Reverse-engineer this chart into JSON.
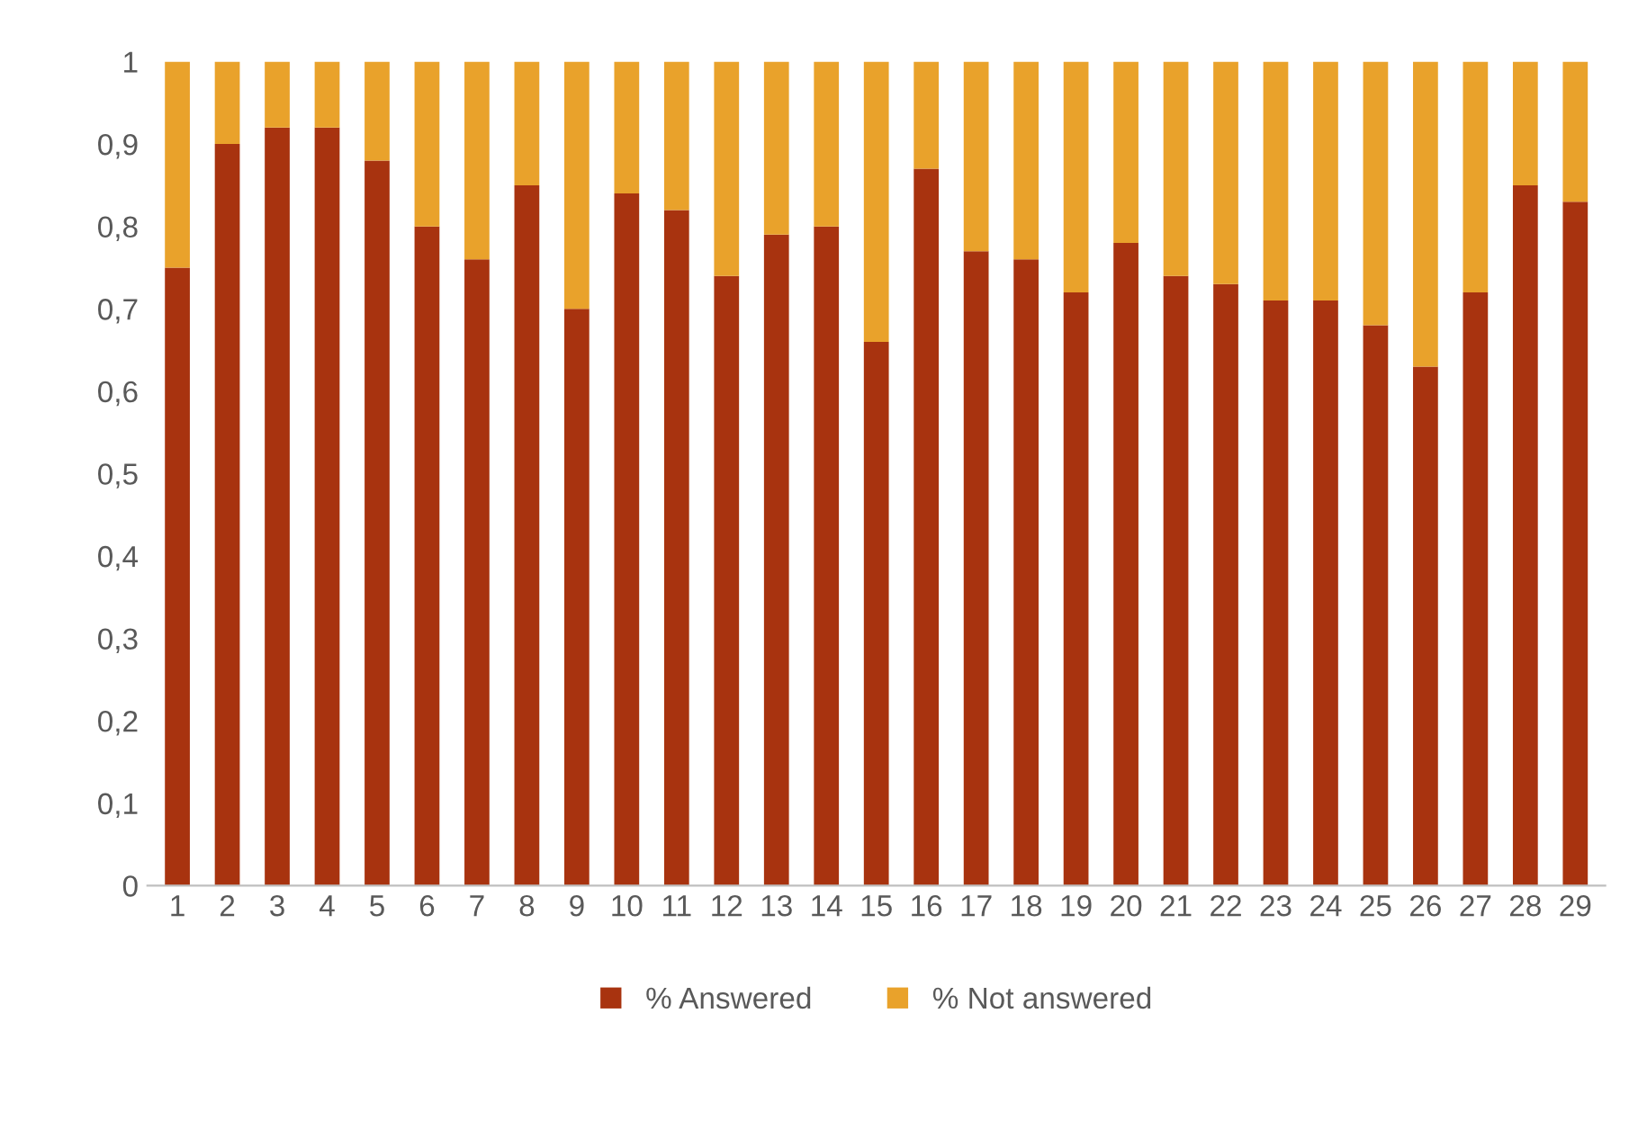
{
  "chart_data": {
    "type": "bar",
    "stacked": true,
    "categories": [
      "1",
      "2",
      "3",
      "4",
      "5",
      "6",
      "7",
      "8",
      "9",
      "10",
      "11",
      "12",
      "13",
      "14",
      "15",
      "16",
      "17",
      "18",
      "19",
      "20",
      "21",
      "22",
      "23",
      "24",
      "25",
      "26",
      "27",
      "28",
      "29"
    ],
    "series": [
      {
        "name": "% Answered",
        "color": "#a8330f",
        "values": [
          0.75,
          0.9,
          0.92,
          0.92,
          0.88,
          0.8,
          0.76,
          0.85,
          0.7,
          0.84,
          0.82,
          0.74,
          0.79,
          0.8,
          0.66,
          0.87,
          0.77,
          0.76,
          0.72,
          0.78,
          0.74,
          0.73,
          0.71,
          0.71,
          0.68,
          0.63,
          0.72,
          0.85,
          0.83
        ]
      },
      {
        "name": "% Not answered",
        "color": "#e9a22b",
        "values": [
          0.25,
          0.1,
          0.08,
          0.08,
          0.12,
          0.2,
          0.24,
          0.15,
          0.3,
          0.16,
          0.18,
          0.26,
          0.21,
          0.2,
          0.34,
          0.13,
          0.23,
          0.24,
          0.28,
          0.22,
          0.26,
          0.27,
          0.29,
          0.29,
          0.32,
          0.37,
          0.28,
          0.15,
          0.17
        ]
      }
    ],
    "ylim": [
      0,
      1
    ],
    "yticks": [
      0,
      {
        "value": 0.1,
        "label": "0,1"
      },
      {
        "value": 0.2,
        "label": "0,2"
      },
      {
        "value": 0.3,
        "label": "0,3"
      },
      {
        "value": 0.4,
        "label": "0,4"
      },
      {
        "value": 0.5,
        "label": "0,5"
      },
      {
        "value": 0.6,
        "label": "0,6"
      },
      {
        "value": 0.7,
        "label": "0,7"
      },
      {
        "value": 0.8,
        "label": "0,8"
      },
      {
        "value": 0.9,
        "label": "0,9"
      },
      1
    ],
    "grid": false,
    "legend": "bottom"
  }
}
